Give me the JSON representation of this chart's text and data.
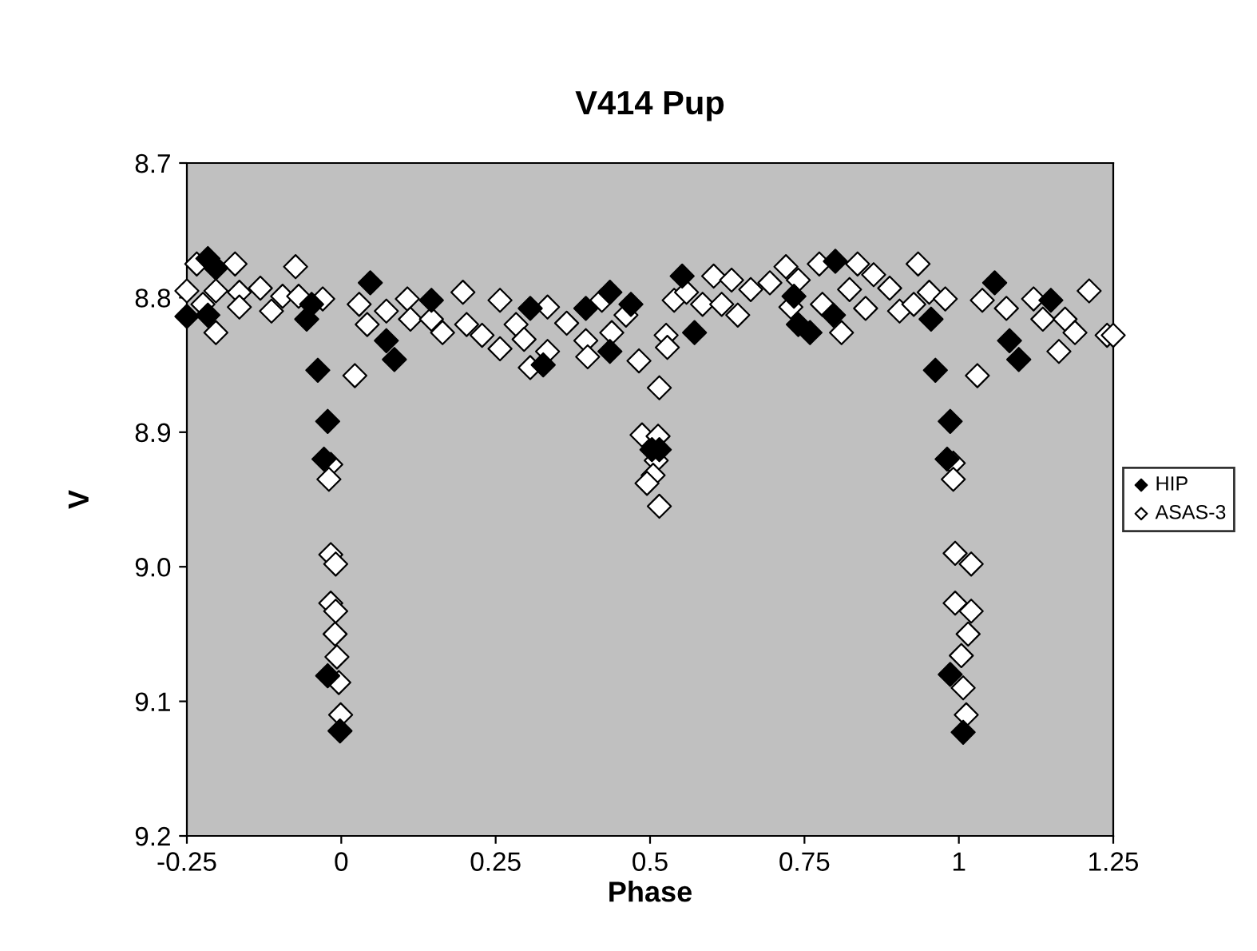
{
  "chart_data": {
    "type": "scatter",
    "title": "V414 Pup",
    "xlabel": "Phase",
    "ylabel": "V",
    "xlim": [
      -0.25,
      1.25
    ],
    "xticks": [
      -0.25,
      0,
      0.25,
      0.5,
      0.75,
      1,
      1.25
    ],
    "ylim": [
      9.2,
      8.7
    ],
    "yticks": [
      8.7,
      8.8,
      8.9,
      {
        "value": 9,
        "label": "9.0"
      },
      9.1,
      9.2
    ],
    "grid": false,
    "legend": "right",
    "marker": "diamond",
    "series": [
      {
        "name": "HIP",
        "color": "#000000",
        "x": [
          -0.216,
          -0.203,
          -0.25,
          -0.216,
          -0.056,
          -0.048,
          -0.038,
          -0.022,
          -0.028,
          -0.022,
          -0.002,
          0.047,
          0.073,
          0.086,
          0.146,
          0.306,
          0.327,
          0.435,
          0.435,
          0.469,
          0.396,
          0.503,
          0.515,
          0.552,
          0.572,
          0.74,
          0.759,
          0.8,
          0.797,
          0.955,
          0.962,
          0.986,
          0.981,
          0.986,
          1.007,
          1.058,
          1.082,
          1.097,
          1.149,
          0.733
        ],
        "values": [
          8.771,
          8.778,
          8.814,
          8.813,
          8.816,
          8.805,
          8.854,
          8.892,
          8.92,
          9.081,
          9.122,
          8.789,
          8.832,
          8.846,
          8.802,
          8.808,
          8.85,
          8.796,
          8.84,
          8.805,
          8.808,
          8.913,
          8.913,
          8.784,
          8.826,
          8.82,
          8.826,
          8.773,
          8.813,
          8.816,
          8.854,
          8.892,
          8.92,
          9.08,
          9.123,
          8.789,
          8.832,
          8.846,
          8.802,
          8.799
        ]
      },
      {
        "name": "ASAS-3",
        "color": "#ffffff",
        "x": [
          -0.234,
          -0.172,
          -0.074,
          -0.25,
          -0.203,
          -0.165,
          -0.131,
          -0.095,
          -0.224,
          -0.165,
          -0.113,
          -0.069,
          -0.03,
          -0.203,
          -0.017,
          -0.02,
          -0.017,
          -0.009,
          -0.017,
          -0.009,
          -0.01,
          -0.007,
          -0.004,
          -0.001,
          0.022,
          0.029,
          0.042,
          0.073,
          0.107,
          0.112,
          0.146,
          0.164,
          0.197,
          0.203,
          0.228,
          0.257,
          0.257,
          0.283,
          0.296,
          0.306,
          0.334,
          0.334,
          0.365,
          0.396,
          0.399,
          0.422,
          0.438,
          0.461,
          0.482,
          0.487,
          0.513,
          0.51,
          0.505,
          0.495,
          0.515,
          0.515,
          0.526,
          0.528,
          0.539,
          0.559,
          0.603,
          0.585,
          0.616,
          0.642,
          0.632,
          0.663,
          0.694,
          0.72,
          0.74,
          0.774,
          0.728,
          0.779,
          0.81,
          0.823,
          0.836,
          0.849,
          0.862,
          0.888,
          0.904,
          0.934,
          0.927,
          0.952,
          0.978,
          0.991,
          0.991,
          0.994,
          1.02,
          0.994,
          1.02,
          1.015,
          1.004,
          1.007,
          1.012,
          1.03,
          1.038,
          1.077,
          1.121,
          1.136,
          1.172,
          1.211,
          1.162,
          1.24,
          1.25,
          1.188
        ],
        "values": [
          8.775,
          8.775,
          8.777,
          8.795,
          8.795,
          8.796,
          8.793,
          8.799,
          8.805,
          8.807,
          8.81,
          8.799,
          8.801,
          8.826,
          8.924,
          8.935,
          8.991,
          8.998,
          9.027,
          9.033,
          9.05,
          9.067,
          9.086,
          9.11,
          8.858,
          8.805,
          8.82,
          8.81,
          8.801,
          8.816,
          8.816,
          8.826,
          8.796,
          8.82,
          8.828,
          8.802,
          8.838,
          8.82,
          8.831,
          8.852,
          8.807,
          8.84,
          8.819,
          8.832,
          8.844,
          8.802,
          8.826,
          8.813,
          8.847,
          8.902,
          8.903,
          8.921,
          8.932,
          8.938,
          8.955,
          8.867,
          8.828,
          8.837,
          8.802,
          8.796,
          8.784,
          8.805,
          8.805,
          8.813,
          8.787,
          8.794,
          8.789,
          8.777,
          8.787,
          8.775,
          8.807,
          8.805,
          8.826,
          8.794,
          8.775,
          8.808,
          8.783,
          8.793,
          8.81,
          8.775,
          8.805,
          8.796,
          8.801,
          8.923,
          8.935,
          8.99,
          8.998,
          9.027,
          9.033,
          9.05,
          9.066,
          9.09,
          9.11,
          8.858,
          8.802,
          8.808,
          8.801,
          8.816,
          8.816,
          8.795,
          8.84,
          8.828,
          8.828,
          8.826
        ]
      }
    ]
  }
}
